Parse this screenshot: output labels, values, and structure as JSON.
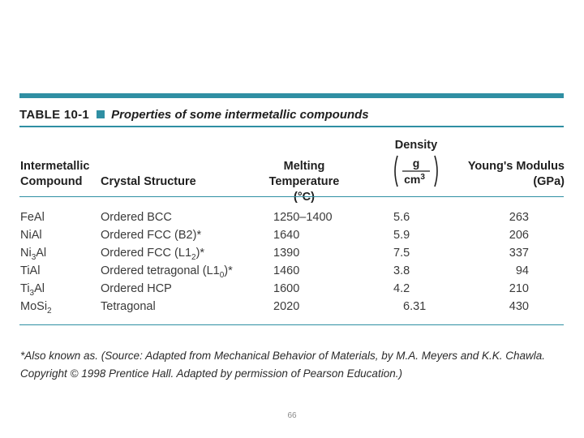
{
  "table": {
    "label": "TABLE 10-1",
    "title": "Properties of some intermetallic compounds",
    "headers": {
      "compound_line1": "Intermetallic",
      "compound_line2": "Compound",
      "structure": "Crystal Structure",
      "melt_line1": "Melting Temperature",
      "melt_line2": "(°C)",
      "density_title": "Density",
      "density_num": "g",
      "density_den": "cm3",
      "modulus_line1": "Young's Modulus",
      "modulus_line2": "(GPa)"
    },
    "rows": [
      {
        "compound_base": "FeAl",
        "compound_sub": "",
        "compound_tail": "",
        "structure": "Ordered BCC",
        "melting": "1250–1400",
        "density": "5.6",
        "modulus": "263"
      },
      {
        "compound_base": "NiAl",
        "compound_sub": "",
        "compound_tail": "",
        "structure": "Ordered FCC (B2)*",
        "melting": "1640",
        "density": "5.9",
        "modulus": "206"
      },
      {
        "compound_base": "Ni",
        "compound_sub": "3",
        "compound_tail": "Al",
        "structure": "Ordered FCC (L12)*",
        "melting": "1390",
        "density": "7.5",
        "modulus": "337"
      },
      {
        "compound_base": "TiAl",
        "compound_sub": "",
        "compound_tail": "",
        "structure": "Ordered tetragonal (L10)*",
        "melting": "1460",
        "density": "3.8",
        "modulus": "94"
      },
      {
        "compound_base": "Ti",
        "compound_sub": "3",
        "compound_tail": "Al",
        "structure": "Ordered HCP",
        "melting": "1600",
        "density": "4.2",
        "modulus": "210"
      },
      {
        "compound_base": "MoSi",
        "compound_sub": "2",
        "compound_tail": "",
        "structure": "Tetragonal",
        "melting": "2020",
        "density": "6.31",
        "modulus": "430"
      }
    ],
    "footnote_line1": "*Also known as. (Source: Adapted from Mechanical Behavior of Materials, by M.A. Meyers and K.K. Chawla.",
    "footnote_line2": "Copyright © 1998 Prentice Hall. Adapted by permission of Pearson Education.)"
  },
  "page_number": "66",
  "colors": {
    "accent": "#2f8fa3",
    "text": "#2b2b2b"
  }
}
